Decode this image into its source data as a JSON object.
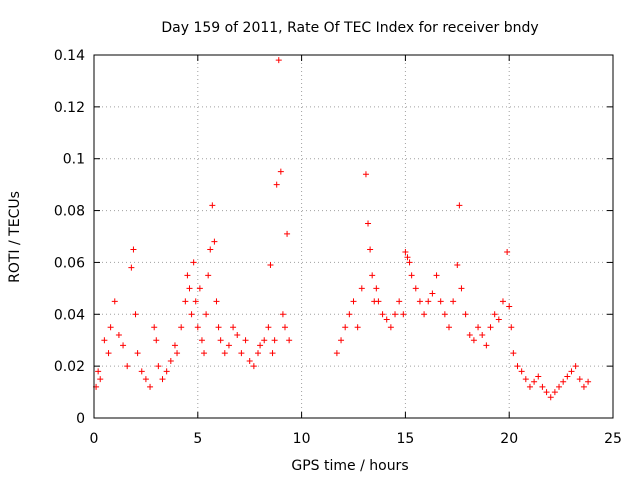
{
  "chart_data": {
    "type": "scatter",
    "title": "Day 159 of 2011, Rate Of TEC Index for receiver bndy",
    "xlabel": "GPS time / hours",
    "ylabel": "ROTI / TECUs",
    "xlim": [
      0,
      25
    ],
    "ylim": [
      0,
      0.14
    ],
    "x_ticks": [
      "0",
      "5",
      "10",
      "15",
      "20",
      "25"
    ],
    "y_ticks": [
      "0",
      "0.02",
      "0.04",
      "0.06",
      "0.08",
      "0.1",
      "0.12",
      "0.14"
    ],
    "grid": true,
    "marker": "plus",
    "color": "#ff0000",
    "series": [
      {
        "x": [
          0.1,
          0.2,
          0.3,
          0.5,
          0.7,
          0.8,
          1.0,
          1.2,
          1.4,
          1.6,
          1.8,
          1.9,
          2.0,
          2.1,
          2.3,
          2.5,
          2.7,
          2.9,
          3.0,
          3.1,
          3.3,
          3.5,
          3.7,
          3.9,
          4.0,
          4.2,
          4.4,
          4.5,
          4.6,
          4.7,
          4.8,
          4.9,
          5.0,
          5.1,
          5.2,
          5.3,
          5.4,
          5.5,
          5.6,
          5.7,
          5.8,
          5.9,
          6.0,
          6.1,
          6.3,
          6.5,
          6.7,
          6.9,
          7.1,
          7.3,
          7.5,
          7.7,
          7.9,
          8.0,
          8.2,
          8.4,
          8.5,
          8.6,
          8.7,
          8.8,
          8.9,
          9.0,
          9.1,
          9.2,
          9.3,
          9.4,
          11.7,
          11.9,
          12.1,
          12.3,
          12.5,
          12.7,
          12.9,
          13.1,
          13.2,
          13.3,
          13.4,
          13.5,
          13.6,
          13.7,
          13.9,
          14.1,
          14.3,
          14.5,
          14.7,
          14.9,
          15.0,
          15.1,
          15.2,
          15.3,
          15.5,
          15.7,
          15.9,
          16.1,
          16.3,
          16.5,
          16.7,
          16.9,
          17.1,
          17.3,
          17.5,
          17.6,
          17.7,
          17.9,
          18.1,
          18.3,
          18.5,
          18.7,
          18.9,
          19.1,
          19.3,
          19.5,
          19.7,
          19.9,
          20.0,
          20.1,
          20.2,
          20.4,
          20.6,
          20.8,
          21.0,
          21.2,
          21.4,
          21.6,
          21.8,
          22.0,
          22.2,
          22.4,
          22.6,
          22.8,
          23.0,
          23.2,
          23.4,
          23.6,
          23.8
        ],
        "y": [
          0.012,
          0.018,
          0.015,
          0.03,
          0.025,
          0.035,
          0.045,
          0.032,
          0.028,
          0.02,
          0.058,
          0.065,
          0.04,
          0.025,
          0.018,
          0.015,
          0.012,
          0.035,
          0.03,
          0.02,
          0.015,
          0.018,
          0.022,
          0.028,
          0.025,
          0.035,
          0.045,
          0.055,
          0.05,
          0.04,
          0.06,
          0.045,
          0.035,
          0.05,
          0.03,
          0.025,
          0.04,
          0.055,
          0.065,
          0.082,
          0.068,
          0.045,
          0.035,
          0.03,
          0.025,
          0.028,
          0.035,
          0.032,
          0.025,
          0.03,
          0.022,
          0.02,
          0.025,
          0.028,
          0.03,
          0.035,
          0.059,
          0.025,
          0.03,
          0.09,
          0.138,
          0.095,
          0.04,
          0.035,
          0.071,
          0.03,
          0.025,
          0.03,
          0.035,
          0.04,
          0.045,
          0.035,
          0.05,
          0.094,
          0.075,
          0.065,
          0.055,
          0.045,
          0.05,
          0.045,
          0.04,
          0.038,
          0.035,
          0.04,
          0.045,
          0.04,
          0.064,
          0.062,
          0.06,
          0.055,
          0.05,
          0.045,
          0.04,
          0.045,
          0.048,
          0.055,
          0.045,
          0.04,
          0.035,
          0.045,
          0.059,
          0.082,
          0.05,
          0.04,
          0.032,
          0.03,
          0.035,
          0.032,
          0.028,
          0.035,
          0.04,
          0.038,
          0.045,
          0.064,
          0.043,
          0.035,
          0.025,
          0.02,
          0.018,
          0.015,
          0.012,
          0.014,
          0.016,
          0.012,
          0.01,
          0.008,
          0.01,
          0.012,
          0.014,
          0.016,
          0.018,
          0.02,
          0.015,
          0.012,
          0.014
        ]
      }
    ]
  }
}
